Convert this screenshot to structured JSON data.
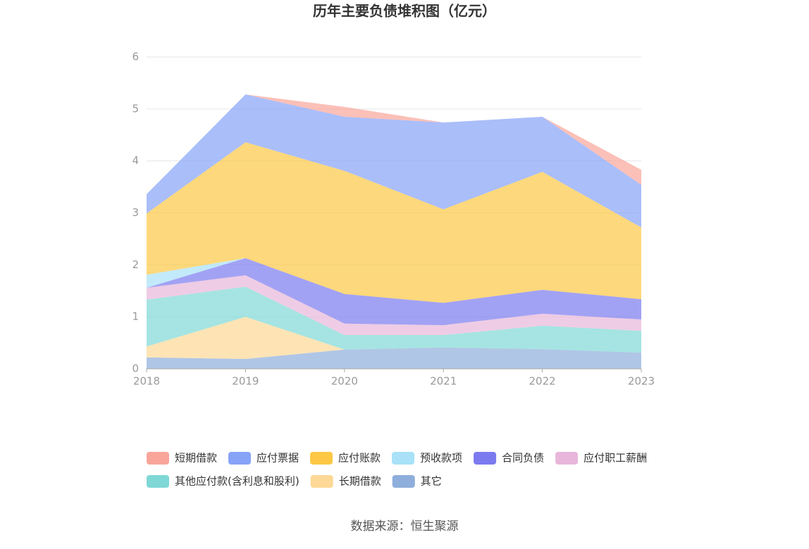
{
  "chart_data": {
    "type": "stacked-area",
    "title": "历年主要负债堆积图（亿元）",
    "categories": [
      "2018",
      "2019",
      "2020",
      "2021",
      "2022",
      "2023"
    ],
    "series": [
      {
        "name": "短期借款",
        "color": "#f9a59a",
        "values": [
          0,
          0,
          0.19,
          0,
          0,
          0.29
        ]
      },
      {
        "name": "应付票据",
        "color": "#86a3f8",
        "values": [
          0.37,
          0.92,
          1.04,
          1.67,
          1.06,
          0.82
        ]
      },
      {
        "name": "应付账款",
        "color": "#fcc844",
        "values": [
          1.18,
          2.23,
          2.37,
          1.8,
          2.27,
          1.38
        ]
      },
      {
        "name": "预收款项",
        "color": "#a8e1f8",
        "values": [
          0.25,
          0,
          0,
          0,
          0,
          0
        ]
      },
      {
        "name": "合同负债",
        "color": "#7b7bef",
        "values": [
          0,
          0.33,
          0.57,
          0.43,
          0.46,
          0.39
        ]
      },
      {
        "name": "应付职工薪酬",
        "color": "#e8b6da",
        "values": [
          0.23,
          0.22,
          0.22,
          0.19,
          0.23,
          0.22
        ]
      },
      {
        "name": "其他应付款(含利息和股利)",
        "color": "#7fd8d6",
        "values": [
          0.9,
          0.58,
          0.28,
          0.24,
          0.45,
          0.42
        ]
      },
      {
        "name": "长期借款",
        "color": "#fdd896",
        "values": [
          0.21,
          0.81,
          0,
          0,
          0,
          0
        ]
      },
      {
        "name": "其它",
        "color": "#8eaedc",
        "values": [
          0.22,
          0.19,
          0.37,
          0.41,
          0.38,
          0.31
        ]
      }
    ],
    "ylim": [
      0,
      6
    ],
    "yticks": [
      0,
      1,
      2,
      3,
      4,
      5,
      6
    ],
    "grid": true,
    "source": "数据来源：恒生聚源"
  }
}
